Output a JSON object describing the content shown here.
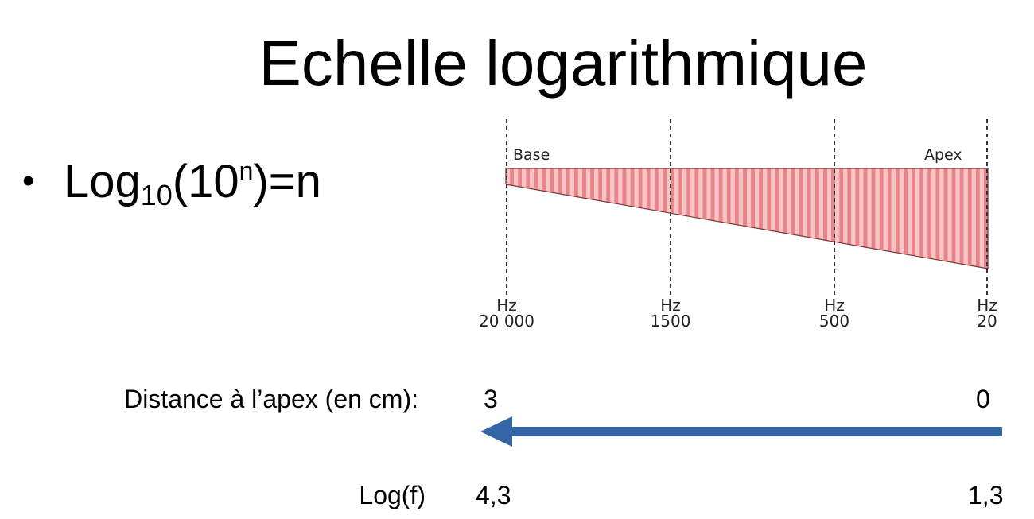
{
  "slide": {
    "title": "Echelle logarithmique",
    "bullet": {
      "base": "Log",
      "sub": "10",
      "open": "(10",
      "sup": "n",
      "close": ")=n"
    }
  },
  "diagram": {
    "left_label": "Base",
    "right_label": "Apex",
    "frequencies": [
      {
        "unit": "Hz",
        "value": "20 000"
      },
      {
        "unit": "Hz",
        "value": "1500"
      },
      {
        "unit": "Hz",
        "value": "500"
      },
      {
        "unit": "Hz",
        "value": "20"
      }
    ],
    "colors": {
      "light": "#f9c4c4",
      "dark": "#e8858a",
      "edge": "#7a3a3a",
      "arrow": "#3465a4"
    }
  },
  "distance_row": {
    "label": "Distance à l’apex (en cm):",
    "left_value": "3",
    "right_value": "0"
  },
  "log_row": {
    "label": "Log(f)",
    "left_value": "4,3",
    "right_value": "1,3"
  }
}
